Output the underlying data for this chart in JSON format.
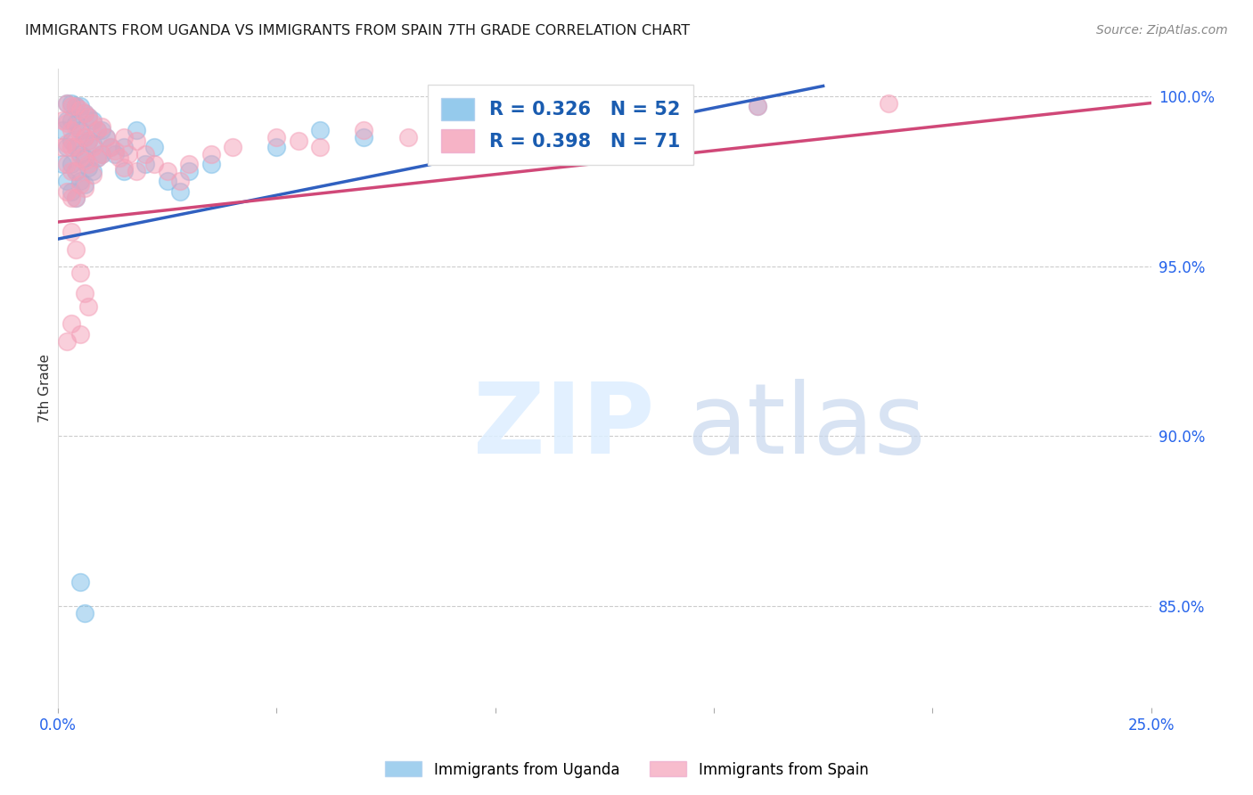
{
  "title": "IMMIGRANTS FROM UGANDA VS IMMIGRANTS FROM SPAIN 7TH GRADE CORRELATION CHART",
  "source": "Source: ZipAtlas.com",
  "ylabel": "7th Grade",
  "xlim": [
    0.0,
    0.25
  ],
  "ylim": [
    0.82,
    1.008
  ],
  "yticks": [
    0.85,
    0.9,
    0.95,
    1.0
  ],
  "ytick_labels": [
    "85.0%",
    "90.0%",
    "95.0%",
    "100.0%"
  ],
  "xticks": [
    0.0,
    0.05,
    0.1,
    0.15,
    0.2,
    0.25
  ],
  "xtick_labels": [
    "0.0%",
    "",
    "",
    "",
    "",
    "25.0%"
  ],
  "r_uganda": 0.326,
  "n_uganda": 52,
  "r_spain": 0.398,
  "n_spain": 71,
  "color_uganda": "#7bbde8",
  "color_spain": "#f4a0b8",
  "color_trendline_uganda": "#3060c0",
  "color_trendline_spain": "#d04878",
  "legend_label_uganda": "Immigrants from Uganda",
  "legend_label_spain": "Immigrants from Spain",
  "trendline_uganda_x0": 0.0,
  "trendline_uganda_y0": 0.958,
  "trendline_uganda_x1": 0.175,
  "trendline_uganda_y1": 1.003,
  "trendline_spain_x0": 0.0,
  "trendline_spain_y0": 0.963,
  "trendline_spain_x1": 0.25,
  "trendline_spain_y1": 0.998,
  "uganda_x": [
    0.001,
    0.001,
    0.002,
    0.002,
    0.002,
    0.002,
    0.003,
    0.003,
    0.003,
    0.003,
    0.003,
    0.004,
    0.004,
    0.004,
    0.004,
    0.004,
    0.005,
    0.005,
    0.005,
    0.005,
    0.006,
    0.006,
    0.006,
    0.006,
    0.007,
    0.007,
    0.007,
    0.008,
    0.008,
    0.008,
    0.009,
    0.009,
    0.01,
    0.01,
    0.011,
    0.012,
    0.013,
    0.015,
    0.015,
    0.018,
    0.02,
    0.022,
    0.025,
    0.028,
    0.03,
    0.035,
    0.05,
    0.06,
    0.07,
    0.16,
    0.005,
    0.006
  ],
  "uganda_y": [
    0.99,
    0.98,
    0.998,
    0.993,
    0.985,
    0.975,
    0.998,
    0.993,
    0.987,
    0.98,
    0.972,
    0.997,
    0.992,
    0.985,
    0.978,
    0.97,
    0.997,
    0.99,
    0.983,
    0.975,
    0.995,
    0.988,
    0.982,
    0.974,
    0.994,
    0.987,
    0.979,
    0.993,
    0.986,
    0.978,
    0.99,
    0.982,
    0.99,
    0.983,
    0.988,
    0.985,
    0.983,
    0.985,
    0.978,
    0.99,
    0.98,
    0.985,
    0.975,
    0.972,
    0.978,
    0.98,
    0.985,
    0.99,
    0.988,
    0.997,
    0.857,
    0.848
  ],
  "spain_x": [
    0.001,
    0.001,
    0.002,
    0.002,
    0.002,
    0.002,
    0.002,
    0.003,
    0.003,
    0.003,
    0.003,
    0.003,
    0.004,
    0.004,
    0.004,
    0.004,
    0.004,
    0.005,
    0.005,
    0.005,
    0.005,
    0.006,
    0.006,
    0.006,
    0.006,
    0.007,
    0.007,
    0.007,
    0.008,
    0.008,
    0.008,
    0.009,
    0.009,
    0.01,
    0.01,
    0.011,
    0.012,
    0.013,
    0.014,
    0.015,
    0.015,
    0.016,
    0.018,
    0.018,
    0.02,
    0.022,
    0.025,
    0.028,
    0.03,
    0.035,
    0.04,
    0.05,
    0.055,
    0.06,
    0.07,
    0.08,
    0.09,
    0.1,
    0.11,
    0.12,
    0.13,
    0.16,
    0.19,
    0.005,
    0.006,
    0.007,
    0.003,
    0.004,
    0.003,
    0.005,
    0.002
  ],
  "spain_y": [
    0.993,
    0.985,
    0.998,
    0.992,
    0.986,
    0.98,
    0.972,
    0.997,
    0.99,
    0.985,
    0.978,
    0.97,
    0.997,
    0.991,
    0.985,
    0.978,
    0.97,
    0.996,
    0.989,
    0.982,
    0.974,
    0.995,
    0.988,
    0.981,
    0.973,
    0.994,
    0.987,
    0.98,
    0.992,
    0.985,
    0.977,
    0.99,
    0.982,
    0.991,
    0.983,
    0.988,
    0.985,
    0.984,
    0.982,
    0.988,
    0.979,
    0.983,
    0.987,
    0.978,
    0.983,
    0.98,
    0.978,
    0.975,
    0.98,
    0.983,
    0.985,
    0.988,
    0.987,
    0.985,
    0.99,
    0.988,
    0.987,
    0.993,
    0.99,
    0.992,
    0.993,
    0.997,
    0.998,
    0.948,
    0.942,
    0.938,
    0.96,
    0.955,
    0.933,
    0.93,
    0.928
  ]
}
